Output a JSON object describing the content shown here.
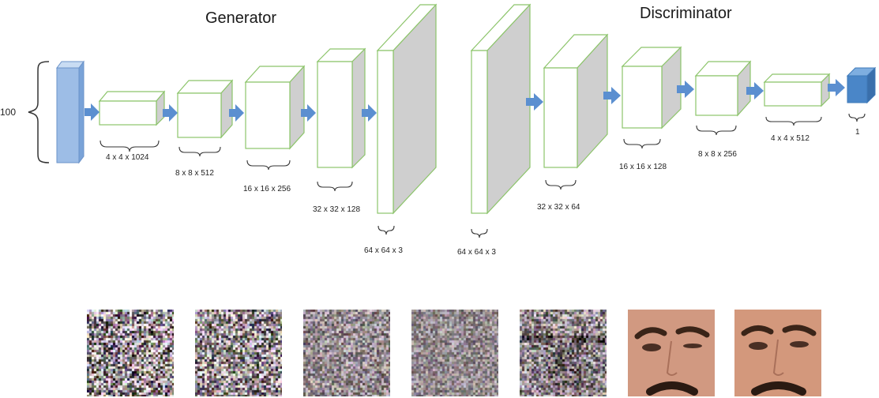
{
  "titles": {
    "generator": "Generator",
    "discriminator": "Discriminator"
  },
  "latent": {
    "label": "100"
  },
  "generator_layers": [
    {
      "label": "4 x 4 x 1024"
    },
    {
      "label": "8 x 8 x 512"
    },
    {
      "label": "16 x 16 x 256"
    },
    {
      "label": "32 x 32 x 128"
    },
    {
      "label": "64 x 64 x  3"
    }
  ],
  "discriminator_layers": [
    {
      "label": "64 x 64 x  3"
    },
    {
      "label": "32 x 32 x  64"
    },
    {
      "label": "16 x 16 x 128"
    },
    {
      "label": "8 x 8 x 256"
    },
    {
      "label": "4 x 4 x 512"
    },
    {
      "label": "1"
    }
  ],
  "colors": {
    "block_edge": "#8cc46a",
    "block_side": "#cfcfcf",
    "latent_fill": "#9dbde6",
    "output_fill": "#4a86c8",
    "arrow": "#5b8fd0"
  },
  "samples": [
    {
      "kind": "noise",
      "level": 1.0
    },
    {
      "kind": "noise",
      "level": 0.9
    },
    {
      "kind": "noise",
      "level": 0.55
    },
    {
      "kind": "noise",
      "level": 0.45
    },
    {
      "kind": "face-noisy",
      "level": 0.7
    },
    {
      "kind": "face",
      "level": 0.0
    },
    {
      "kind": "face",
      "level": 0.0
    }
  ]
}
